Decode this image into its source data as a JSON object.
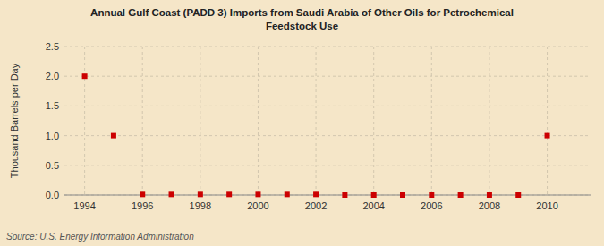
{
  "chart_data": {
    "type": "scatter",
    "title": "Annual Gulf Coast (PADD 3) Imports from Saudi Arabia of Other Oils for Petrochemical\nFeedstock Use",
    "ylabel": "Thousand Barrels per Day",
    "annotations": [
      "Source: U.S. Energy Information Administration"
    ],
    "x": [
      1994,
      1995,
      1996,
      1997,
      1998,
      1999,
      2000,
      2001,
      2002,
      2003,
      2004,
      2005,
      2006,
      2007,
      2008,
      2009,
      2010
    ],
    "values": [
      2.0,
      1.0,
      0.01,
      0.01,
      0.01,
      0.01,
      0.01,
      0.01,
      0.01,
      0.0,
      0.0,
      0.0,
      0.0,
      0.0,
      0.0,
      0.0,
      1.0
    ],
    "color": "#cc0000",
    "marker": "square",
    "xlim": [
      1993.3,
      2011.5
    ],
    "ylim": [
      0.0,
      2.5
    ],
    "xticks": [
      1994,
      1996,
      1998,
      2000,
      2002,
      2004,
      2006,
      2008,
      2010
    ],
    "yticks": [
      {
        "value": 0.0,
        "label": "0.0"
      },
      0.5,
      {
        "value": 1.0,
        "label": "1.0"
      },
      1.5,
      {
        "value": 2.0,
        "label": "2.0"
      },
      2.5
    ],
    "grid": true
  }
}
